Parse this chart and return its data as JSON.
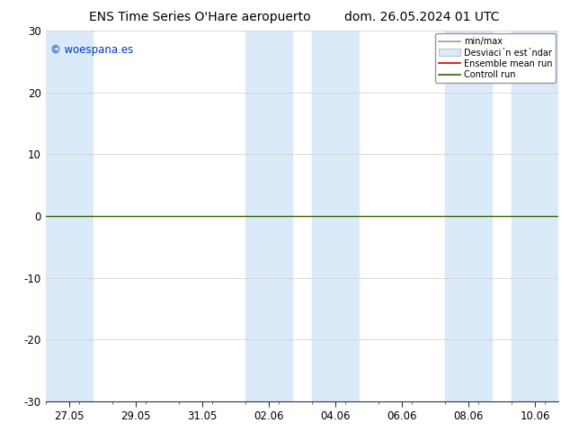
{
  "title_left": "ENS Time Series O'Hare aeropuerto",
  "title_right": "dom. 26.05.2024 01 UTC",
  "watermark": "© woespana.es",
  "ylim": [
    -30,
    30
  ],
  "yticks": [
    -30,
    -20,
    -10,
    0,
    10,
    20,
    30
  ],
  "xtick_labels": [
    "27.05",
    "29.05",
    "31.05",
    "02.06",
    "04.06",
    "06.06",
    "08.06",
    "10.06"
  ],
  "xtick_positions": [
    0,
    2,
    4,
    6,
    8,
    10,
    12,
    14
  ],
  "xlim": [
    -0.7,
    14.7
  ],
  "background_color": "#ffffff",
  "plot_bg_color": "#ffffff",
  "shaded_band_color": "#daeaf8",
  "band_positions": [
    [
      -0.7,
      0.7
    ],
    [
      5.3,
      6.7
    ],
    [
      7.3,
      8.7
    ],
    [
      11.3,
      12.7
    ],
    [
      13.3,
      14.7
    ]
  ],
  "legend_labels": [
    "min/max",
    "Desviaci´n est´ndar",
    "Ensemble mean run",
    "Controll run"
  ],
  "legend_line_colors": [
    "#999999",
    "#cccccc",
    "#cc0000",
    "#336600"
  ],
  "grid_color": "#cccccc",
  "zero_line_color": "#336600",
  "title_fontsize": 10,
  "tick_fontsize": 8.5,
  "watermark_color": "#0033cc",
  "figsize": [
    6.34,
    4.9
  ],
  "dpi": 100
}
